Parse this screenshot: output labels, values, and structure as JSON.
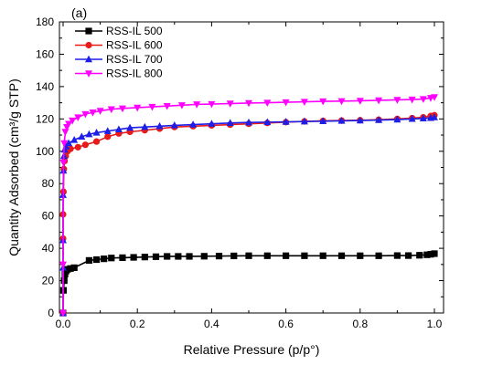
{
  "chart_data": {
    "type": "line",
    "panel_label": "(a)",
    "xlabel": "Relative Pressure (p/p°)",
    "ylabel": "Quantity Adsorbed (cm³/g STP)",
    "xlim": [
      0,
      1.0
    ],
    "ylim": [
      0,
      180
    ],
    "xticks": [
      "0.0",
      "0.2",
      "0.4",
      "0.6",
      "0.8",
      "1.0"
    ],
    "yticks": [
      "0",
      "20",
      "40",
      "60",
      "80",
      "100",
      "120",
      "140",
      "160",
      "180"
    ],
    "legend_position": "top-left",
    "grid": false,
    "series": [
      {
        "name": "RSS-IL 500",
        "color": "#000000",
        "marker": "square",
        "x": [
          0.0,
          0.001,
          0.003,
          0.005,
          0.008,
          0.012,
          0.02,
          0.03,
          0.07,
          0.09,
          0.11,
          0.13,
          0.16,
          0.19,
          0.22,
          0.25,
          0.28,
          0.31,
          0.34,
          0.38,
          0.42,
          0.46,
          0.5,
          0.55,
          0.6,
          0.65,
          0.7,
          0.75,
          0.8,
          0.85,
          0.9,
          0.93,
          0.96,
          0.98,
          0.99,
          1.0
        ],
        "y": [
          0,
          14,
          20,
          24,
          26,
          27,
          27.5,
          28,
          32.5,
          33,
          33.5,
          34,
          34.2,
          34.4,
          34.6,
          34.8,
          35,
          35,
          35,
          35.1,
          35.2,
          35.3,
          35.4,
          35.4,
          35.4,
          35.4,
          35.4,
          35.4,
          35.4,
          35.4,
          35.5,
          35.5,
          35.7,
          36,
          36.3,
          36.7
        ]
      },
      {
        "name": "RSS-IL 600",
        "color": "#e81b1b",
        "marker": "circle",
        "x": [
          0.0,
          0.0,
          0.0,
          0.001,
          0.002,
          0.004,
          0.007,
          0.012,
          0.02,
          0.04,
          0.06,
          0.09,
          0.12,
          0.15,
          0.18,
          0.22,
          0.26,
          0.3,
          0.35,
          0.4,
          0.45,
          0.5,
          0.55,
          0.6,
          0.65,
          0.7,
          0.75,
          0.8,
          0.85,
          0.9,
          0.94,
          0.97,
          0.99,
          1.0
        ],
        "y": [
          0,
          46,
          61,
          75,
          89,
          94,
          97,
          100,
          101.5,
          102.5,
          104,
          106,
          109,
          111,
          112,
          113,
          114,
          115,
          115.5,
          116,
          116.5,
          117,
          117.5,
          118,
          118.5,
          118.8,
          119,
          119.2,
          119.5,
          120,
          120.5,
          121,
          121.8,
          122.3
        ]
      },
      {
        "name": "RSS-IL 700",
        "color": "#1e1ee6",
        "marker": "triangle-up",
        "x": [
          0.0,
          0.0,
          0.0,
          0.0,
          0.001,
          0.002,
          0.004,
          0.008,
          0.015,
          0.03,
          0.05,
          0.07,
          0.09,
          0.12,
          0.15,
          0.18,
          0.22,
          0.26,
          0.3,
          0.35,
          0.4,
          0.45,
          0.5,
          0.55,
          0.6,
          0.65,
          0.7,
          0.75,
          0.8,
          0.85,
          0.9,
          0.94,
          0.97,
          0.99,
          1.0
        ],
        "y": [
          0,
          28,
          45,
          73,
          88,
          97,
          101,
          103,
          105,
          107,
          109,
          110.5,
          111.5,
          112.5,
          113.5,
          114.5,
          115,
          115.5,
          116,
          116.5,
          117,
          117.5,
          117.8,
          118,
          118.2,
          118.4,
          118.6,
          118.8,
          119,
          119.3,
          119.6,
          120,
          120.3,
          120.6,
          121
        ]
      },
      {
        "name": "RSS-IL 800",
        "color": "#ff00ff",
        "marker": "triangle-down",
        "x": [
          0.0,
          0.0,
          0.001,
          0.003,
          0.006,
          0.01,
          0.015,
          0.025,
          0.04,
          0.06,
          0.08,
          0.1,
          0.13,
          0.16,
          0.2,
          0.24,
          0.28,
          0.32,
          0.36,
          0.4,
          0.45,
          0.5,
          0.55,
          0.6,
          0.65,
          0.7,
          0.75,
          0.8,
          0.85,
          0.9,
          0.94,
          0.97,
          0.99,
          1.0
        ],
        "y": [
          0,
          30,
          93,
          105,
          112,
          115,
          117,
          119,
          121,
          123,
          124,
          125,
          126,
          126.5,
          127,
          127.5,
          128,
          128.5,
          129,
          129.2,
          129.5,
          129.8,
          130,
          130.3,
          130.6,
          130.9,
          131,
          131.2,
          131.5,
          131.8,
          132,
          132.3,
          133,
          133.5
        ]
      }
    ]
  }
}
